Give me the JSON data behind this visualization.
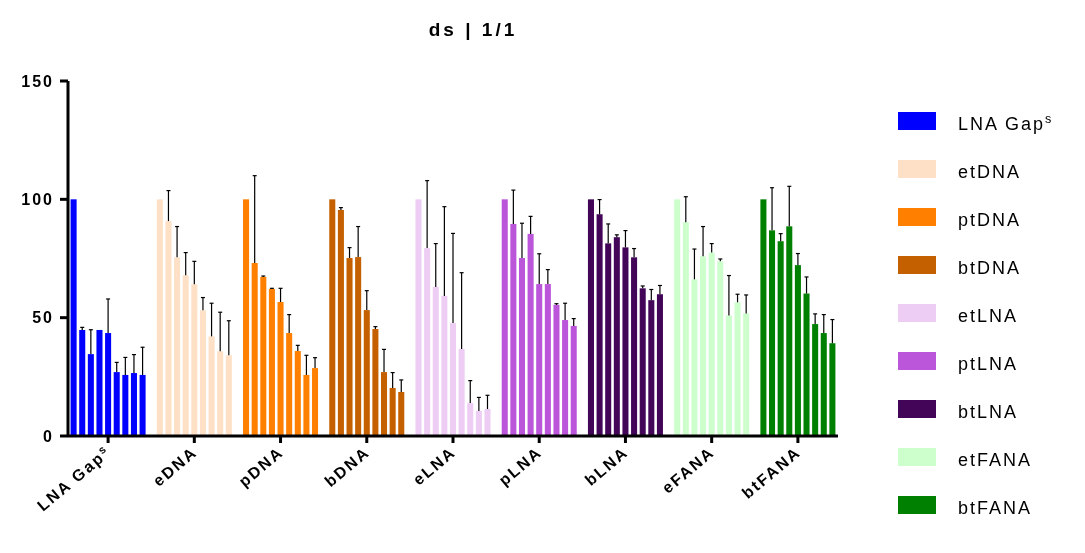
{
  "chart_data": {
    "type": "bar",
    "title": "ds | 1/1",
    "categories": [
      null,
      null,
      null,
      null,
      "LNA Gap$^{s}$",
      null,
      null,
      null,
      null,
      null,
      null,
      null,
      null,
      null,
      "eDNA",
      null,
      null,
      null,
      null,
      null,
      null,
      null,
      null,
      null,
      "pDNA",
      null,
      null,
      null,
      null,
      null,
      null,
      null,
      null,
      null,
      "bDNA",
      null,
      null,
      null,
      null,
      null,
      null,
      null,
      null,
      null,
      "eLNA",
      null,
      null,
      null,
      null,
      null,
      null,
      null,
      null,
      null,
      "pLNA",
      null,
      null,
      null,
      null,
      null,
      null,
      null,
      null,
      null,
      "bLNA",
      null,
      null,
      null,
      null,
      null,
      null,
      null,
      null,
      null,
      "eFANA",
      null,
      null,
      null,
      null,
      null,
      null,
      null,
      null,
      null,
      "btFANA",
      null,
      null,
      null,
      null
    ],
    "ylim": [
      0,
      150
    ],
    "yticks": [
      0,
      50,
      100,
      150
    ],
    "legend": "right",
    "series": [
      {
        "name": "LNA Gap$^{s}$",
        "color": "#0000ff",
        "values": [
          100,
          44.8,
          34.6,
          44.8,
          43.5,
          27,
          25.8,
          26.6,
          25.8,
          null,
          null,
          null,
          null,
          null,
          null,
          null,
          null,
          null,
          null,
          null,
          null,
          null,
          null,
          null,
          null,
          null,
          null,
          null,
          null,
          null,
          null,
          null,
          null,
          null,
          null,
          null,
          null,
          null,
          null,
          null,
          null,
          null,
          null,
          null,
          null,
          null,
          null,
          null,
          null,
          null,
          null,
          null,
          null,
          null,
          null,
          null,
          null,
          null,
          null,
          null,
          null,
          null,
          null,
          null,
          null,
          null,
          null,
          null,
          null,
          null,
          null,
          null,
          null,
          null,
          null,
          null,
          null,
          null,
          null,
          null,
          null,
          null,
          null,
          null,
          null,
          null,
          null,
          null,
          null
        ],
        "errors": [
          null,
          [
            44.8,
            45.9
          ],
          [
            34.6,
            44.9
          ],
          null,
          [
            43.5,
            57.9
          ],
          [
            27,
            31.1
          ],
          [
            25.8,
            33.2
          ],
          [
            26.6,
            34.4
          ],
          [
            25.8,
            37.5
          ],
          null,
          null,
          null,
          null,
          null,
          null,
          null,
          null,
          null,
          null,
          null,
          null,
          null,
          null,
          null,
          null,
          null,
          null,
          null,
          null,
          null,
          null,
          null,
          null,
          null,
          null,
          null,
          null,
          null,
          null,
          null,
          null,
          null,
          null,
          null,
          null,
          null,
          null,
          null,
          null,
          null,
          null,
          null,
          null,
          null,
          null,
          null,
          null,
          null,
          null,
          null,
          null,
          null,
          null,
          null,
          null,
          null,
          null,
          null,
          null,
          null,
          null,
          null,
          null,
          null,
          null,
          null,
          null,
          null,
          null,
          null,
          null,
          null,
          null,
          null,
          null,
          null,
          null,
          null,
          null
        ]
      },
      {
        "name": "etDNA",
        "color": "#fde0c5",
        "values": [
          null,
          null,
          null,
          null,
          null,
          null,
          null,
          null,
          null,
          null,
          100,
          90.8,
          75.5,
          67.9,
          64.1,
          53.1,
          42.1,
          35.8,
          34.1,
          null,
          null,
          null,
          null,
          null,
          null,
          null,
          null,
          null,
          null,
          null,
          null,
          null,
          null,
          null,
          null,
          null,
          null,
          null,
          null,
          null,
          null,
          null,
          null,
          null,
          null,
          null,
          null,
          null,
          null,
          null,
          null,
          null,
          null,
          null,
          null,
          null,
          null,
          null,
          null,
          null,
          null,
          null,
          null,
          null,
          null,
          null,
          null,
          null,
          null,
          null,
          null,
          null,
          null,
          null,
          null,
          null,
          null,
          null,
          null,
          null,
          null,
          null,
          null,
          null,
          null,
          null,
          null,
          null,
          null
        ],
        "errors": [
          null,
          null,
          null,
          null,
          null,
          null,
          null,
          null,
          null,
          null,
          null,
          [
            90.8,
            103.7
          ],
          [
            75.5,
            88.5
          ],
          [
            67.9,
            77.5
          ],
          [
            64.1,
            73.8
          ],
          [
            53.1,
            58.5
          ],
          [
            42.1,
            56.1
          ],
          [
            35.8,
            52.3
          ],
          [
            34.1,
            48.7
          ],
          null,
          null,
          null,
          null,
          null,
          null,
          null,
          null,
          null,
          null,
          null,
          null,
          null,
          null,
          null,
          null,
          null,
          null,
          null,
          null,
          null,
          null,
          null,
          null,
          null,
          null,
          null,
          null,
          null,
          null,
          null,
          null,
          null,
          null,
          null,
          null,
          null,
          null,
          null,
          null,
          null,
          null,
          null,
          null,
          null,
          null,
          null,
          null,
          null,
          null,
          null,
          null,
          null,
          null,
          null,
          null,
          null,
          null,
          null,
          null,
          null,
          null,
          null,
          null,
          null,
          null,
          null,
          null,
          null,
          null
        ]
      },
      {
        "name": "ptDNA",
        "color": "#ff8000",
        "values": [
          null,
          null,
          null,
          null,
          null,
          null,
          null,
          null,
          null,
          null,
          null,
          null,
          null,
          null,
          null,
          null,
          null,
          null,
          null,
          null,
          100,
          73.1,
          67.2,
          62.1,
          56.6,
          43.5,
          35.9,
          25.8,
          28.7,
          null,
          null,
          null,
          null,
          null,
          null,
          null,
          null,
          null,
          null,
          null,
          null,
          null,
          null,
          null,
          null,
          null,
          null,
          null,
          null,
          null,
          null,
          null,
          null,
          null,
          null,
          null,
          null,
          null,
          null,
          null,
          null,
          null,
          null,
          null,
          null,
          null,
          null,
          null,
          null,
          null,
          null,
          null,
          null,
          null,
          null,
          null,
          null,
          null,
          null,
          null,
          null,
          null,
          null,
          null,
          null,
          null,
          null,
          null,
          null
        ],
        "errors": [
          null,
          null,
          null,
          null,
          null,
          null,
          null,
          null,
          null,
          null,
          null,
          null,
          null,
          null,
          null,
          null,
          null,
          null,
          null,
          null,
          null,
          [
            73.1,
            110
          ],
          [
            67.2,
            67.6
          ],
          [
            62.1,
            62.4
          ],
          [
            56.6,
            62.4
          ],
          [
            43.5,
            51.3
          ],
          [
            35.9,
            38.3
          ],
          [
            25.8,
            34.1
          ],
          [
            28.7,
            33.1
          ],
          null,
          null,
          null,
          null,
          null,
          null,
          null,
          null,
          null,
          null,
          null,
          null,
          null,
          null,
          null,
          null,
          null,
          null,
          null,
          null,
          null,
          null,
          null,
          null,
          null,
          null,
          null,
          null,
          null,
          null,
          null,
          null,
          null,
          null,
          null,
          null,
          null,
          null,
          null,
          null,
          null,
          null,
          null,
          null,
          null,
          null,
          null,
          null,
          null,
          null,
          null,
          null,
          null,
          null,
          null,
          null,
          null,
          null,
          null,
          null
        ]
      },
      {
        "name": "btDNA",
        "color": "#c46000",
        "values": [
          null,
          null,
          null,
          null,
          null,
          null,
          null,
          null,
          null,
          null,
          null,
          null,
          null,
          null,
          null,
          null,
          null,
          null,
          null,
          null,
          null,
          null,
          null,
          null,
          null,
          null,
          null,
          null,
          null,
          null,
          100,
          95.5,
          75.2,
          75.6,
          53.2,
          45.2,
          27,
          20.3,
          18.6,
          null,
          null,
          null,
          null,
          null,
          null,
          null,
          null,
          null,
          null,
          null,
          null,
          null,
          null,
          null,
          null,
          null,
          null,
          null,
          null,
          null,
          null,
          null,
          null,
          null,
          null,
          null,
          null,
          null,
          null,
          null,
          null,
          null,
          null,
          null,
          null,
          null,
          null,
          null,
          null,
          null,
          null,
          null,
          null,
          null,
          null,
          null,
          null,
          null,
          null
        ],
        "errors": [
          null,
          null,
          null,
          null,
          null,
          null,
          null,
          null,
          null,
          null,
          null,
          null,
          null,
          null,
          null,
          null,
          null,
          null,
          null,
          null,
          null,
          null,
          null,
          null,
          null,
          null,
          null,
          null,
          null,
          null,
          null,
          [
            95.5,
            96.5
          ],
          [
            75.2,
            79.6
          ],
          [
            75.6,
            88.5
          ],
          [
            53.2,
            61.4
          ],
          [
            45.2,
            46.2
          ],
          [
            27,
            36.6
          ],
          [
            20.3,
            26.8
          ],
          [
            18.6,
            23.7
          ],
          null,
          null,
          null,
          null,
          null,
          null,
          null,
          null,
          null,
          null,
          null,
          null,
          null,
          null,
          null,
          null,
          null,
          null,
          null,
          null,
          null,
          null,
          null,
          null,
          null,
          null,
          null,
          null,
          null,
          null,
          null,
          null,
          null,
          null,
          null,
          null,
          null,
          null,
          null,
          null,
          null,
          null,
          null,
          null,
          null,
          null,
          null,
          null,
          null,
          null
        ]
      },
      {
        "name": "etLNA",
        "color": "#eecdf5",
        "values": [
          null,
          null,
          null,
          null,
          null,
          null,
          null,
          null,
          null,
          null,
          null,
          null,
          null,
          null,
          null,
          null,
          null,
          null,
          null,
          null,
          null,
          null,
          null,
          null,
          null,
          null,
          null,
          null,
          null,
          null,
          null,
          null,
          null,
          null,
          null,
          null,
          null,
          null,
          null,
          null,
          100,
          79.4,
          63,
          59.2,
          47.7,
          36.8,
          13.9,
          10.6,
          11.4,
          null,
          null,
          null,
          null,
          null,
          null,
          null,
          null,
          null,
          null,
          null,
          null,
          null,
          null,
          null,
          null,
          null,
          null,
          null,
          null,
          null,
          null,
          null,
          null,
          null,
          null,
          null,
          null,
          null,
          null,
          null,
          null,
          null,
          null,
          null,
          null,
          null,
          null,
          null,
          null
        ],
        "errors": [
          null,
          null,
          null,
          null,
          null,
          null,
          null,
          null,
          null,
          null,
          null,
          null,
          null,
          null,
          null,
          null,
          null,
          null,
          null,
          null,
          null,
          null,
          null,
          null,
          null,
          null,
          null,
          null,
          null,
          null,
          null,
          null,
          null,
          null,
          null,
          null,
          null,
          null,
          null,
          null,
          null,
          [
            79.4,
            107.9
          ],
          [
            63,
            81.3
          ],
          [
            59.2,
            96.9
          ],
          [
            47.7,
            85.6
          ],
          [
            36.8,
            69
          ],
          [
            13.9,
            23.4
          ],
          [
            10.6,
            16.3
          ],
          [
            11.4,
            17.2
          ],
          null,
          null,
          null,
          null,
          null,
          null,
          null,
          null,
          null,
          null,
          null,
          null,
          null,
          null,
          null,
          null,
          null,
          null,
          null,
          null,
          null,
          null,
          null,
          null,
          null,
          null,
          null,
          null,
          null,
          null,
          null,
          null,
          null,
          null,
          null,
          null,
          null,
          null,
          null,
          null
        ]
      },
      {
        "name": "ptLNA",
        "color": "#bb55d9",
        "values": [
          null,
          null,
          null,
          null,
          null,
          null,
          null,
          null,
          null,
          null,
          null,
          null,
          null,
          null,
          null,
          null,
          null,
          null,
          null,
          null,
          null,
          null,
          null,
          null,
          null,
          null,
          null,
          null,
          null,
          null,
          null,
          null,
          null,
          null,
          null,
          null,
          null,
          null,
          null,
          null,
          null,
          null,
          null,
          null,
          null,
          null,
          null,
          null,
          null,
          null,
          100,
          89.6,
          75.2,
          85.4,
          64.2,
          64.2,
          55.4,
          49,
          46.5,
          null,
          null,
          null,
          null,
          null,
          null,
          null,
          null,
          null,
          null,
          null,
          null,
          null,
          null,
          null,
          null,
          null,
          null,
          null,
          null,
          null,
          null,
          null,
          null,
          null,
          null,
          null,
          null,
          null,
          null
        ],
        "errors": [
          null,
          null,
          null,
          null,
          null,
          null,
          null,
          null,
          null,
          null,
          null,
          null,
          null,
          null,
          null,
          null,
          null,
          null,
          null,
          null,
          null,
          null,
          null,
          null,
          null,
          null,
          null,
          null,
          null,
          null,
          null,
          null,
          null,
          null,
          null,
          null,
          null,
          null,
          null,
          null,
          null,
          null,
          null,
          null,
          null,
          null,
          null,
          null,
          null,
          null,
          null,
          [
            89.6,
            103.9
          ],
          [
            75.2,
            89.9
          ],
          [
            85.4,
            92.8
          ],
          [
            64.2,
            77
          ],
          [
            64.2,
            70.3
          ],
          [
            55.4,
            55.9
          ],
          [
            49,
            56.1
          ],
          [
            46.5,
            49.6
          ],
          null,
          null,
          null,
          null,
          null,
          null,
          null,
          null,
          null,
          null,
          null,
          null,
          null,
          null,
          null,
          null,
          null,
          null,
          null,
          null,
          null,
          null,
          null,
          null,
          null,
          null,
          null,
          null,
          null,
          null
        ]
      },
      {
        "name": "btLNA",
        "color": "#420558",
        "values": [
          null,
          null,
          null,
          null,
          null,
          null,
          null,
          null,
          null,
          null,
          null,
          null,
          null,
          null,
          null,
          null,
          null,
          null,
          null,
          null,
          null,
          null,
          null,
          null,
          null,
          null,
          null,
          null,
          null,
          null,
          null,
          null,
          null,
          null,
          null,
          null,
          null,
          null,
          null,
          null,
          null,
          null,
          null,
          null,
          null,
          null,
          null,
          null,
          null,
          null,
          null,
          null,
          null,
          null,
          null,
          null,
          null,
          null,
          null,
          null,
          100,
          93.7,
          81.4,
          84,
          79.7,
          75.5,
          62.4,
          57.4,
          59.9,
          null,
          null,
          null,
          null,
          null,
          null,
          null,
          null,
          null,
          null,
          null,
          null,
          null,
          null,
          null,
          null,
          null,
          null,
          null,
          null
        ],
        "errors": [
          null,
          null,
          null,
          null,
          null,
          null,
          null,
          null,
          null,
          null,
          null,
          null,
          null,
          null,
          null,
          null,
          null,
          null,
          null,
          null,
          null,
          null,
          null,
          null,
          null,
          null,
          null,
          null,
          null,
          null,
          null,
          null,
          null,
          null,
          null,
          null,
          null,
          null,
          null,
          null,
          null,
          null,
          null,
          null,
          null,
          null,
          null,
          null,
          null,
          null,
          null,
          null,
          null,
          null,
          null,
          null,
          null,
          null,
          null,
          null,
          null,
          [
            93.7,
            99.9
          ],
          [
            81.4,
            89.6
          ],
          [
            84,
            85
          ],
          [
            79.7,
            86.8
          ],
          [
            75.5,
            79.2
          ],
          [
            62.4,
            63.4
          ],
          [
            57.4,
            61.9
          ],
          [
            59.9,
            63.6
          ],
          null,
          null,
          null,
          null,
          null,
          null,
          null,
          null,
          null,
          null,
          null,
          null,
          null,
          null,
          null,
          null,
          null,
          null,
          null,
          null
        ]
      },
      {
        "name": "etFANA",
        "color": "#ccffcc",
        "values": [
          null,
          null,
          null,
          null,
          null,
          null,
          null,
          null,
          null,
          null,
          null,
          null,
          null,
          null,
          null,
          null,
          null,
          null,
          null,
          null,
          null,
          null,
          null,
          null,
          null,
          null,
          null,
          null,
          null,
          null,
          null,
          null,
          null,
          null,
          null,
          null,
          null,
          null,
          null,
          null,
          null,
          null,
          null,
          null,
          null,
          null,
          null,
          null,
          null,
          null,
          null,
          null,
          null,
          null,
          null,
          null,
          null,
          null,
          null,
          null,
          null,
          null,
          null,
          null,
          null,
          null,
          null,
          null,
          null,
          null,
          100,
          90.3,
          66.2,
          75.9,
          77.5,
          73.8,
          50.9,
          56.5,
          51.8,
          null,
          null,
          null,
          null,
          null,
          null,
          null,
          null,
          null,
          null
        ],
        "errors": [
          null,
          null,
          null,
          null,
          null,
          null,
          null,
          null,
          null,
          null,
          null,
          null,
          null,
          null,
          null,
          null,
          null,
          null,
          null,
          null,
          null,
          null,
          null,
          null,
          null,
          null,
          null,
          null,
          null,
          null,
          null,
          null,
          null,
          null,
          null,
          null,
          null,
          null,
          null,
          null,
          null,
          null,
          null,
          null,
          null,
          null,
          null,
          null,
          null,
          null,
          null,
          null,
          null,
          null,
          null,
          null,
          null,
          null,
          null,
          null,
          null,
          null,
          null,
          null,
          null,
          null,
          null,
          null,
          null,
          null,
          null,
          [
            90.3,
            101.1
          ],
          [
            66.2,
            79
          ],
          [
            75.9,
            88.5
          ],
          [
            77.5,
            81.3
          ],
          [
            73.8,
            74.8
          ],
          [
            50.9,
            67.8
          ],
          [
            56.5,
            59.9
          ],
          [
            51.8,
            59.6
          ],
          null,
          null,
          null,
          null,
          null,
          null,
          null,
          null,
          null,
          null
        ]
      },
      {
        "name": "btFANA",
        "color": "#008000",
        "values": [
          null,
          null,
          null,
          null,
          null,
          null,
          null,
          null,
          null,
          null,
          null,
          null,
          null,
          null,
          null,
          null,
          null,
          null,
          null,
          null,
          null,
          null,
          null,
          null,
          null,
          null,
          null,
          null,
          null,
          null,
          null,
          null,
          null,
          null,
          null,
          null,
          null,
          null,
          null,
          null,
          null,
          null,
          null,
          null,
          null,
          null,
          null,
          null,
          null,
          null,
          null,
          null,
          null,
          null,
          null,
          null,
          null,
          null,
          null,
          null,
          null,
          null,
          null,
          null,
          null,
          null,
          null,
          null,
          null,
          null,
          null,
          null,
          null,
          null,
          null,
          null,
          null,
          null,
          null,
          null,
          100,
          86.9,
          82.3,
          88.6,
          72.2,
          60.2,
          47.3,
          43.5,
          39.2
        ],
        "errors": [
          null,
          null,
          null,
          null,
          null,
          null,
          null,
          null,
          null,
          null,
          null,
          null,
          null,
          null,
          null,
          null,
          null,
          null,
          null,
          null,
          null,
          null,
          null,
          null,
          null,
          null,
          null,
          null,
          null,
          null,
          null,
          null,
          null,
          null,
          null,
          null,
          null,
          null,
          null,
          null,
          null,
          null,
          null,
          null,
          null,
          null,
          null,
          null,
          null,
          null,
          null,
          null,
          null,
          null,
          null,
          null,
          null,
          null,
          null,
          null,
          null,
          null,
          null,
          null,
          null,
          null,
          null,
          null,
          null,
          null,
          null,
          null,
          null,
          null,
          null,
          null,
          null,
          null,
          null,
          null,
          null,
          [
            86.9,
            104.9
          ],
          [
            82.3,
            85.5
          ],
          [
            88.6,
            105.5
          ],
          [
            72.2,
            77.1
          ],
          [
            60.2,
            67.2
          ],
          [
            47.3,
            51.6
          ],
          [
            43.5,
            51.3
          ],
          [
            39.2,
            49.2
          ]
        ]
      }
    ]
  }
}
